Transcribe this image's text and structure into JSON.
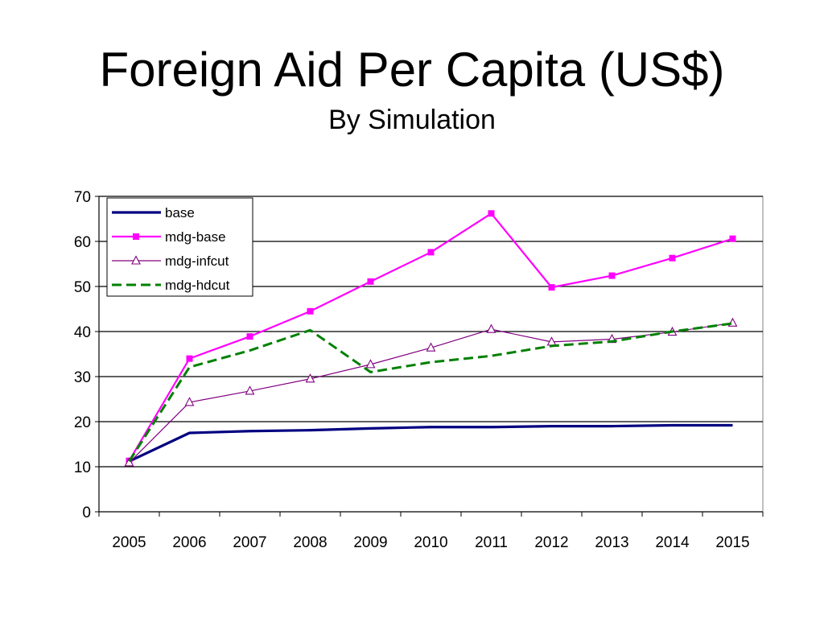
{
  "slide": {
    "title": "Foreign Aid Per Capita (US$)",
    "subtitle": "By Simulation"
  },
  "chart_data": {
    "type": "line",
    "title": "",
    "xlabel": "",
    "ylabel": "",
    "ylim": [
      0,
      70
    ],
    "yticks": [
      0,
      10,
      20,
      30,
      40,
      50,
      60,
      70
    ],
    "categories": [
      "2005",
      "2006",
      "2007",
      "2008",
      "2009",
      "2010",
      "2011",
      "2012",
      "2013",
      "2014",
      "2015"
    ],
    "grid": true,
    "legend_position": "top-left",
    "series": [
      {
        "name": "base",
        "color": "#000080",
        "style": "solid-thick",
        "marker": "none",
        "values": [
          11.2,
          17.5,
          17.9,
          18.1,
          18.5,
          18.8,
          18.8,
          19.0,
          19.0,
          19.2,
          19.2
        ]
      },
      {
        "name": "mdg-base",
        "color": "#ff00ff",
        "style": "solid",
        "marker": "square",
        "values": [
          11.3,
          34.0,
          38.9,
          44.5,
          51.1,
          57.6,
          66.2,
          49.8,
          52.4,
          56.3,
          60.6
        ]
      },
      {
        "name": "mdg-infcut",
        "color": "#800080",
        "style": "solid-thin",
        "marker": "triangle",
        "values": [
          10.9,
          24.3,
          26.8,
          29.5,
          32.7,
          36.4,
          40.5,
          37.7,
          38.3,
          39.9,
          41.9
        ]
      },
      {
        "name": "mdg-hdcut",
        "color": "#008000",
        "style": "dashed",
        "marker": "none",
        "values": [
          11.2,
          32.1,
          35.8,
          40.3,
          31.0,
          33.2,
          34.6,
          36.8,
          37.8,
          40.0,
          41.8
        ]
      }
    ]
  }
}
